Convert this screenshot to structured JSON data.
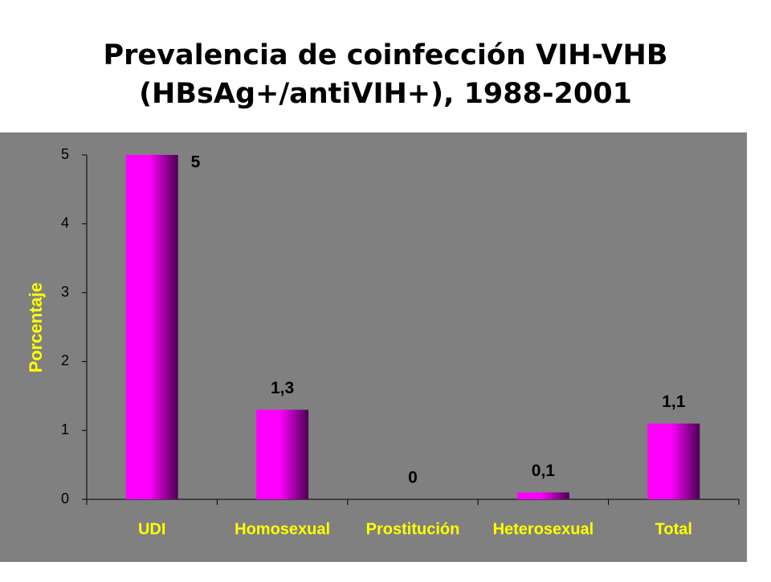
{
  "chart_data": {
    "type": "bar",
    "title": [
      "Prevalencia de coinfección VIH-VHB",
      "(HBsAg+/antiVIH+), 1988-2001"
    ],
    "y_label": "Porcentaje",
    "categories": [
      "UDI",
      "Homosexual",
      "Prostitución",
      "Heterosexual",
      "Total"
    ],
    "values": [
      5,
      1.3,
      0,
      0.1,
      1.1
    ],
    "value_labels": [
      "5",
      "1,3",
      "0",
      "0,1",
      "1,1"
    ],
    "color": "#ff00ff",
    "ylim": [
      0,
      5
    ],
    "yticks": [
      0,
      1,
      2,
      3,
      4,
      5
    ],
    "grid": false
  }
}
